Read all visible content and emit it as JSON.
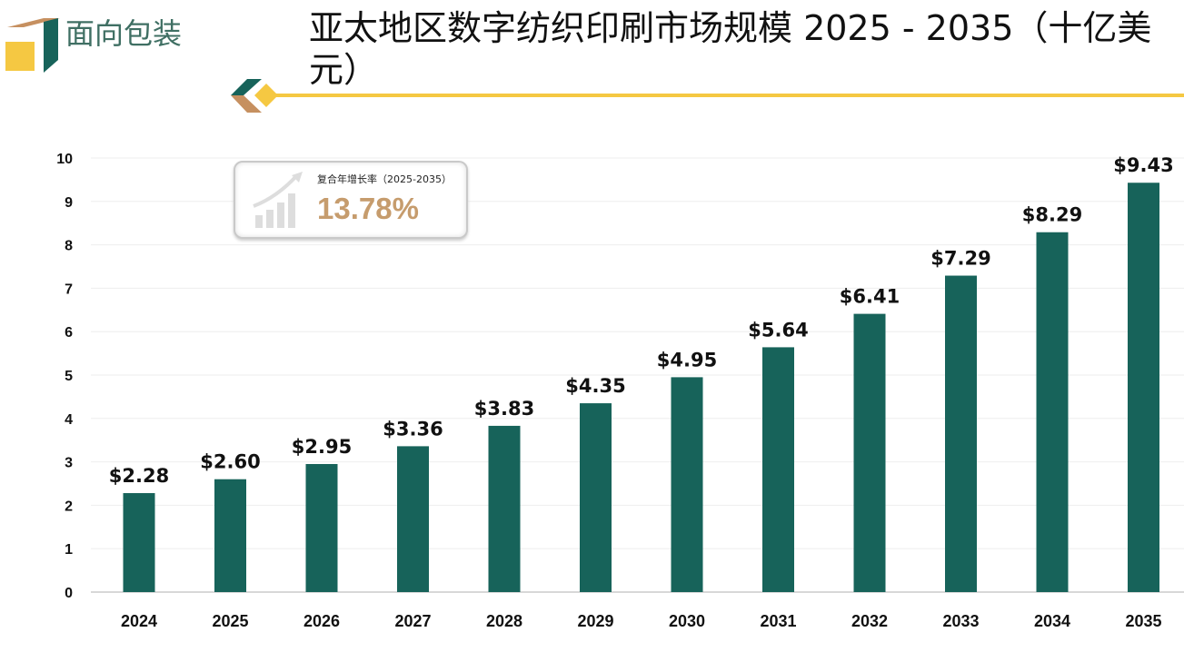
{
  "brand": {
    "name": "面向包装"
  },
  "title": "亚太地区数字纺织印刷市场规模 2025 - 2035（十亿美元）",
  "cagr": {
    "label": "复合年增长率（2025-2035）",
    "value": "13.78%"
  },
  "colors": {
    "bar": "#17635a",
    "accent_yellow": "#f5c842",
    "accent_tan": "#c69060",
    "cagr_text": "#c69c6d"
  },
  "chart_data": {
    "type": "bar",
    "categories": [
      "2024",
      "2025",
      "2026",
      "2027",
      "2028",
      "2029",
      "2030",
      "2031",
      "2032",
      "2033",
      "2034",
      "2035"
    ],
    "values": [
      2.28,
      2.6,
      2.95,
      3.36,
      3.83,
      4.35,
      4.95,
      5.64,
      6.41,
      7.29,
      8.29,
      9.43
    ],
    "data_labels": [
      "$2.28",
      "$2.60",
      "$2.95",
      "$3.36",
      "$3.83",
      "$4.35",
      "$4.95",
      "$5.64",
      "$6.41",
      "$7.29",
      "$8.29",
      "$9.43"
    ],
    "yticks": [
      "0",
      "1",
      "2",
      "3",
      "4",
      "5",
      "6",
      "7",
      "8",
      "9",
      "10"
    ],
    "ylim": [
      0,
      10
    ],
    "grid": true
  }
}
